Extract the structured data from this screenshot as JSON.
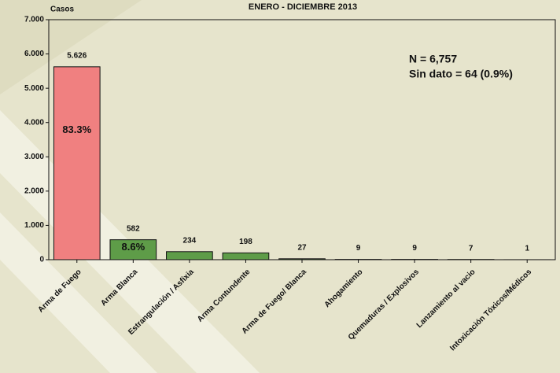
{
  "chart_data": {
    "type": "bar",
    "title": "ENERO - DICIEMBRE 2013",
    "y_label": "Casos",
    "categories": [
      "Arma de Fuego",
      "Arma Blanca",
      "Estrangulación / Asfixia",
      "Arma Contundente",
      "Arma de Fuego/ Blanca",
      "Ahogamiento",
      "Quemaduras / Explosivos",
      "Lanzamiento al vacio",
      "Intoxicación Tóxicos/Médicos"
    ],
    "values": [
      5626,
      582,
      234,
      198,
      27,
      9,
      9,
      7,
      1
    ],
    "value_labels": [
      "5.626",
      "582",
      "234",
      "198",
      "27",
      "9",
      "9",
      "7",
      "1"
    ],
    "share_labels": [
      "83.3%",
      "8.6%",
      null,
      null,
      null,
      null,
      null,
      null,
      null
    ],
    "colors": [
      "#f08080",
      "#5e9c48",
      "#5e9c48",
      "#5e9c48",
      "#5e9c48",
      "#5e9c48",
      "#5e9c48",
      "#5e9c48",
      "#5e9c48"
    ],
    "ylim": [
      0,
      7000
    ],
    "yticks": [
      0,
      {
        "value": 1000,
        "label": "1.000"
      },
      {
        "value": 2000,
        "label": "2.000"
      },
      {
        "value": 3000,
        "label": "3.000"
      },
      {
        "value": 4000,
        "label": "4.000"
      },
      {
        "value": 5000,
        "label": "5.000"
      },
      {
        "value": 6000,
        "label": "6.000"
      },
      {
        "value": 7000,
        "label": "7.000"
      }
    ],
    "annotations": [
      "N = 6,757",
      "Sin dato = 64 (0.9%)"
    ]
  }
}
